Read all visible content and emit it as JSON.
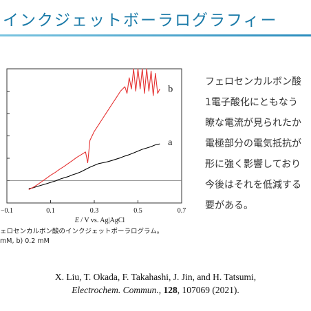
{
  "slide": {
    "title": "インクジェットボーラログラフィー"
  },
  "body_text": [
    "フェロセンカルボン酸",
    "1電子酸化にともなう",
    "瞭な電流が見られたか",
    "電極部分の電気抵抗が",
    "形に強く影響しており",
    "今後はそれを低減する",
    "要がある。"
  ],
  "caption": {
    "line1": "ェロセンカルボン酸のインクジェットポーラログラム。",
    "line2": "mM, b) 0.2 mM"
  },
  "reference": {
    "authors": "X. Liu, T. Okada, F. Takahashi, J. Jin, and H. Tatsumi,",
    "journal": "Electrochem. Commun.",
    "sep1": ", ",
    "volume": "128",
    "rest": ", 107069 (2021)."
  },
  "colors": {
    "title": "#1a7aa8",
    "series_a": "#000000",
    "series_b": "#e53030"
  },
  "chart_data": {
    "type": "line",
    "xlabel_italic": "E",
    "xlabel_rest": " / V vs. Ag|AgCl",
    "x_ticks": [
      "−0.1",
      "0.1",
      "0.3",
      "0.5",
      "0.7"
    ],
    "x_tick_values": [
      -0.1,
      0.1,
      0.3,
      0.5,
      0.7
    ],
    "xlim": [
      -0.1,
      0.7
    ],
    "ylim": [
      -0.5,
      2.5
    ],
    "y_gridlines": [
      0,
      0.5,
      1.0,
      1.5,
      2.0,
      2.5
    ],
    "zero_line": 0,
    "series": [
      {
        "name": "a",
        "x": [
          0.0,
          0.02,
          0.04,
          0.06,
          0.08,
          0.1,
          0.12,
          0.14,
          0.16,
          0.18,
          0.2,
          0.22,
          0.24,
          0.26,
          0.28,
          0.3,
          0.32,
          0.34,
          0.36,
          0.38,
          0.4,
          0.42,
          0.44,
          0.46,
          0.48,
          0.5,
          0.52,
          0.54,
          0.56,
          0.58,
          0.6
        ],
        "y": [
          -0.18,
          -0.16,
          -0.13,
          -0.1,
          -0.07,
          -0.04,
          -0.01,
          0.03,
          0.06,
          0.09,
          0.13,
          0.16,
          0.2,
          0.25,
          0.3,
          0.34,
          0.38,
          0.4,
          0.42,
          0.45,
          0.48,
          0.51,
          0.55,
          0.58,
          0.62,
          0.66,
          0.7,
          0.73,
          0.76,
          0.8,
          0.82
        ]
      },
      {
        "name": "b",
        "x": [
          0.0,
          0.02,
          0.04,
          0.06,
          0.08,
          0.1,
          0.12,
          0.14,
          0.16,
          0.18,
          0.2,
          0.22,
          0.24,
          0.26,
          0.27,
          0.28,
          0.3,
          0.32,
          0.34,
          0.36,
          0.38,
          0.4,
          0.42,
          0.44,
          0.45,
          0.46,
          0.47,
          0.48,
          0.49,
          0.5,
          0.51,
          0.52,
          0.53,
          0.54,
          0.55,
          0.56,
          0.57,
          0.58,
          0.59,
          0.6
        ],
        "y": [
          -0.2,
          -0.15,
          -0.09,
          -0.02,
          0.05,
          0.12,
          0.18,
          0.25,
          0.31,
          0.38,
          0.45,
          0.52,
          0.58,
          0.64,
          0.4,
          0.9,
          1.1,
          1.25,
          1.4,
          1.55,
          1.7,
          1.85,
          2.0,
          2.1,
          1.95,
          2.3,
          2.05,
          2.5,
          2.0,
          2.5,
          2.05,
          2.5,
          1.95,
          2.5,
          2.0,
          2.45,
          1.9,
          2.4,
          1.95,
          2.05
        ]
      }
    ]
  }
}
